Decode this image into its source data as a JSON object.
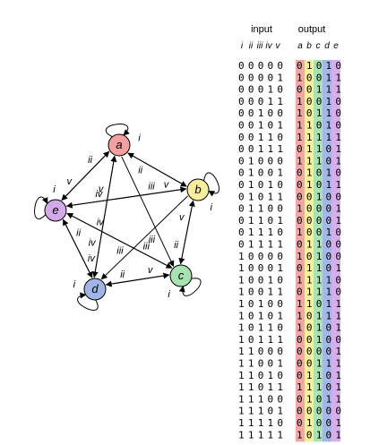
{
  "diagram": {
    "nodes": [
      {
        "id": "a",
        "label": "a",
        "color": "#f4a0a0"
      },
      {
        "id": "b",
        "label": "b",
        "color": "#f6ee9b"
      },
      {
        "id": "c",
        "label": "c",
        "color": "#a6e3b1"
      },
      {
        "id": "d",
        "label": "d",
        "color": "#9fb5e6"
      },
      {
        "id": "e",
        "label": "e",
        "color": "#d3a9ea"
      }
    ],
    "edges": [
      {
        "from": "a",
        "to": "a",
        "label": "i"
      },
      {
        "from": "a",
        "to": "b",
        "label": "v"
      },
      {
        "from": "b",
        "to": "a",
        "label": "ii"
      },
      {
        "from": "a",
        "to": "d",
        "label": "iv"
      },
      {
        "from": "d",
        "to": "a",
        "label": "v"
      },
      {
        "from": "a",
        "to": "c",
        "label": "iii"
      },
      {
        "from": "a",
        "to": "e",
        "label": "v"
      },
      {
        "from": "e",
        "to": "a",
        "label": "ii"
      },
      {
        "from": "b",
        "to": "b",
        "label": "i"
      },
      {
        "from": "b",
        "to": "c",
        "label": "ii"
      },
      {
        "from": "c",
        "to": "b",
        "label": "v"
      },
      {
        "from": "b",
        "to": "d",
        "label": "iii"
      },
      {
        "from": "b",
        "to": "e",
        "label": "iv"
      },
      {
        "from": "e",
        "to": "b",
        "label": "iii"
      },
      {
        "from": "c",
        "to": "c",
        "label": "i"
      },
      {
        "from": "c",
        "to": "d",
        "label": "ii"
      },
      {
        "from": "d",
        "to": "c",
        "label": "v"
      },
      {
        "from": "c",
        "to": "e",
        "label": "iv"
      },
      {
        "from": "e",
        "to": "c",
        "label": "iii"
      },
      {
        "from": "d",
        "to": "d",
        "label": "i"
      },
      {
        "from": "d",
        "to": "e",
        "label": "ii"
      },
      {
        "from": "e",
        "to": "d",
        "label": "iv"
      },
      {
        "from": "e",
        "to": "e",
        "label": "i"
      }
    ]
  },
  "table": {
    "input_header": "input",
    "output_header": "output",
    "input_columns": [
      "i",
      "ii",
      "iii",
      "iv",
      "v"
    ],
    "output_columns": [
      "a",
      "b",
      "c",
      "d",
      "e"
    ],
    "output_colors": [
      "#f4a6a6",
      "#f6ef9c",
      "#a8e4b2",
      "#a3b8e8",
      "#d6aeec"
    ],
    "rows": [
      {
        "input": "00000",
        "output": "01010"
      },
      {
        "input": "00001",
        "output": "10011"
      },
      {
        "input": "00010",
        "output": "00111"
      },
      {
        "input": "00011",
        "output": "10010"
      },
      {
        "input": "00100",
        "output": "10110"
      },
      {
        "input": "00101",
        "output": "11010"
      },
      {
        "input": "00110",
        "output": "11111"
      },
      {
        "input": "00111",
        "output": "01101"
      },
      {
        "input": "01000",
        "output": "11101"
      },
      {
        "input": "01001",
        "output": "01010"
      },
      {
        "input": "01010",
        "output": "01011"
      },
      {
        "input": "01011",
        "output": "00100"
      },
      {
        "input": "01100",
        "output": "10001"
      },
      {
        "input": "01101",
        "output": "00001"
      },
      {
        "input": "01110",
        "output": "10010"
      },
      {
        "input": "01111",
        "output": "01100"
      },
      {
        "input": "10000",
        "output": "10100"
      },
      {
        "input": "10001",
        "output": "01101"
      },
      {
        "input": "10010",
        "output": "11110"
      },
      {
        "input": "10011",
        "output": "01110"
      },
      {
        "input": "10100",
        "output": "11011"
      },
      {
        "input": "10101",
        "output": "10111"
      },
      {
        "input": "10110",
        "output": "10101"
      },
      {
        "input": "10111",
        "output": "00100"
      },
      {
        "input": "11000",
        "output": "00001"
      },
      {
        "input": "11001",
        "output": "00111"
      },
      {
        "input": "11010",
        "output": "01101"
      },
      {
        "input": "11011",
        "output": "11101"
      },
      {
        "input": "11100",
        "output": "01011"
      },
      {
        "input": "11101",
        "output": "00000"
      },
      {
        "input": "11110",
        "output": "01001"
      },
      {
        "input": "11111",
        "output": "10101"
      }
    ]
  }
}
